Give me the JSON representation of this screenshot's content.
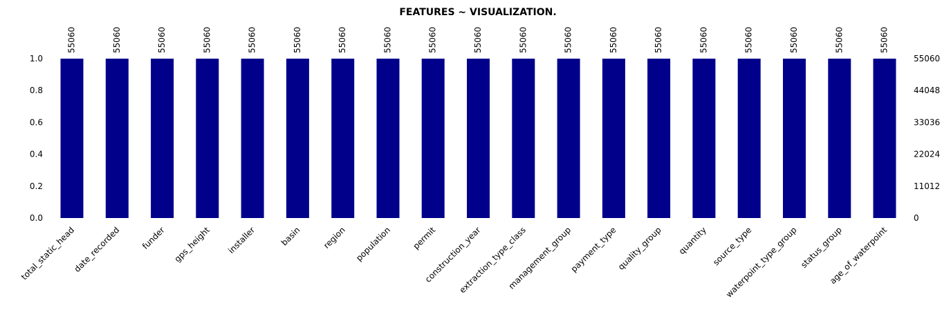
{
  "chart_data": {
    "type": "bar",
    "title": "FEATURES ~ VISUALIZATION.",
    "bar_color": "#00008b",
    "categories": [
      "total_static_head",
      "date_recorded",
      "funder",
      "gps_height",
      "installer",
      "basin",
      "region",
      "population",
      "permit",
      "construction_year",
      "extraction_type_class",
      "management_group",
      "payment_type",
      "quality_group",
      "quantity",
      "source_type",
      "waterpoint_type_group",
      "status_group",
      "age_of_waterpoint"
    ],
    "values": [
      1.0,
      1.0,
      1.0,
      1.0,
      1.0,
      1.0,
      1.0,
      1.0,
      1.0,
      1.0,
      1.0,
      1.0,
      1.0,
      1.0,
      1.0,
      1.0,
      1.0,
      1.0,
      1.0
    ],
    "counts": [
      "55060",
      "55060",
      "55060",
      "55060",
      "55060",
      "55060",
      "55060",
      "55060",
      "55060",
      "55060",
      "55060",
      "55060",
      "55060",
      "55060",
      "55060",
      "55060",
      "55060",
      "55060",
      "55060"
    ],
    "ylim": [
      0,
      1.0
    ],
    "left_ticks": [
      "0.0",
      "0.2",
      "0.4",
      "0.6",
      "0.8",
      "1.0"
    ],
    "right_ticks": [
      "0",
      "11012",
      "22024",
      "33036",
      "44048",
      "55060"
    ],
    "grid": false,
    "legend": "none"
  }
}
